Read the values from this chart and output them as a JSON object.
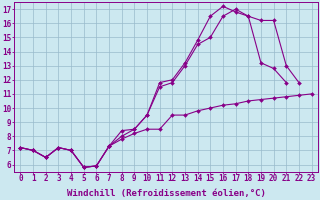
{
  "xlabel": "Windchill (Refroidissement éolien,°C)",
  "bg_color": "#cce8f0",
  "line_color": "#880088",
  "grid_color": "#99bbcc",
  "xlim": [
    -0.5,
    23.5
  ],
  "ylim": [
    5.5,
    17.5
  ],
  "xticks": [
    0,
    1,
    2,
    3,
    4,
    5,
    6,
    7,
    8,
    9,
    10,
    11,
    12,
    13,
    14,
    15,
    16,
    17,
    18,
    19,
    20,
    21,
    22,
    23
  ],
  "yticks": [
    6,
    7,
    8,
    9,
    10,
    11,
    12,
    13,
    14,
    15,
    16,
    17
  ],
  "line1_x": [
    0,
    1,
    2,
    3,
    4,
    5,
    6,
    7,
    8,
    9,
    10,
    11,
    12,
    13,
    14,
    15,
    16,
    17,
    18,
    19,
    20,
    21,
    22,
    23
  ],
  "line1_y": [
    7.2,
    7.0,
    6.5,
    7.2,
    7.0,
    5.8,
    5.9,
    7.3,
    7.8,
    8.2,
    8.5,
    8.5,
    9.5,
    9.5,
    9.8,
    10.0,
    10.2,
    10.3,
    10.5,
    10.6,
    10.7,
    10.8,
    10.9,
    11.0
  ],
  "line2_x": [
    0,
    1,
    2,
    3,
    4,
    5,
    6,
    7,
    8,
    9,
    10,
    11,
    12,
    13,
    14,
    15,
    16,
    17,
    18,
    19,
    20,
    21,
    22,
    23
  ],
  "line2_y": [
    7.2,
    7.0,
    6.5,
    7.2,
    7.0,
    5.8,
    5.9,
    7.3,
    8.0,
    8.5,
    9.5,
    11.5,
    11.8,
    13.0,
    14.5,
    15.0,
    16.5,
    17.0,
    16.5,
    16.2,
    16.2,
    13.0,
    11.8,
    null
  ],
  "line3_x": [
    0,
    1,
    2,
    3,
    4,
    5,
    6,
    7,
    8,
    9,
    10,
    11,
    12,
    13,
    14,
    15,
    16,
    17,
    18,
    19,
    20,
    21,
    22,
    23
  ],
  "line3_y": [
    7.2,
    7.0,
    6.5,
    7.2,
    7.0,
    5.8,
    5.9,
    7.3,
    8.4,
    8.5,
    9.5,
    11.8,
    12.0,
    13.2,
    14.8,
    16.5,
    17.2,
    16.8,
    16.5,
    13.2,
    12.8,
    11.8,
    null,
    null
  ],
  "xlabel_fontsize": 6.5,
  "tick_fontsize": 5.5,
  "marker": "D",
  "markersize": 2.0,
  "linewidth": 0.8
}
